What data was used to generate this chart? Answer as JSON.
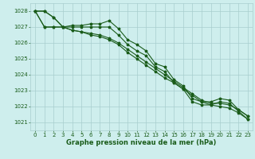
{
  "xlabel": "Graphe pression niveau de la mer (hPa)",
  "ylim": [
    1020.5,
    1028.5
  ],
  "xlim": [
    -0.5,
    23.5
  ],
  "yticks": [
    1021,
    1022,
    1023,
    1024,
    1025,
    1026,
    1027,
    1028
  ],
  "xticks": [
    0,
    1,
    2,
    3,
    4,
    5,
    6,
    7,
    8,
    9,
    10,
    11,
    12,
    13,
    14,
    15,
    16,
    17,
    18,
    19,
    20,
    21,
    22,
    23
  ],
  "bg_color": "#ceeeed",
  "grid_color": "#a8cece",
  "line_color": "#1a5c1a",
  "line1": [
    1028.0,
    1028.0,
    1027.6,
    1027.0,
    1027.1,
    1027.1,
    1027.2,
    1027.2,
    1027.4,
    1026.9,
    1026.2,
    1025.9,
    1025.5,
    1024.7,
    1024.5,
    1023.7,
    1023.3,
    1022.5,
    1022.3,
    1022.3,
    1022.5,
    1022.4,
    1021.8,
    1021.4
  ],
  "line2": [
    1028.0,
    1028.0,
    1027.6,
    1027.0,
    1027.0,
    1027.0,
    1027.0,
    1027.0,
    1027.0,
    1026.5,
    1025.9,
    1025.5,
    1025.2,
    1024.5,
    1024.2,
    1023.5,
    1023.1,
    1022.3,
    1022.1,
    1022.1,
    1022.3,
    1022.2,
    1021.7,
    1021.2
  ],
  "line3": [
    1028.0,
    1027.0,
    1027.0,
    1027.0,
    1026.8,
    1026.7,
    1026.6,
    1026.5,
    1026.3,
    1026.0,
    1025.6,
    1025.2,
    1024.8,
    1024.4,
    1024.0,
    1023.6,
    1023.2,
    1022.8,
    1022.4,
    1022.2,
    1022.2,
    1022.1,
    1021.8,
    1021.4
  ],
  "line4": [
    1028.0,
    1027.0,
    1027.0,
    1027.0,
    1026.8,
    1026.7,
    1026.5,
    1026.4,
    1026.2,
    1025.9,
    1025.4,
    1025.0,
    1024.6,
    1024.2,
    1023.8,
    1023.5,
    1023.1,
    1022.7,
    1022.3,
    1022.1,
    1022.0,
    1021.9,
    1021.6,
    1021.2
  ],
  "tick_fontsize": 5.0,
  "xlabel_fontsize": 6.0,
  "linewidth": 0.8,
  "markersize": 2.5
}
